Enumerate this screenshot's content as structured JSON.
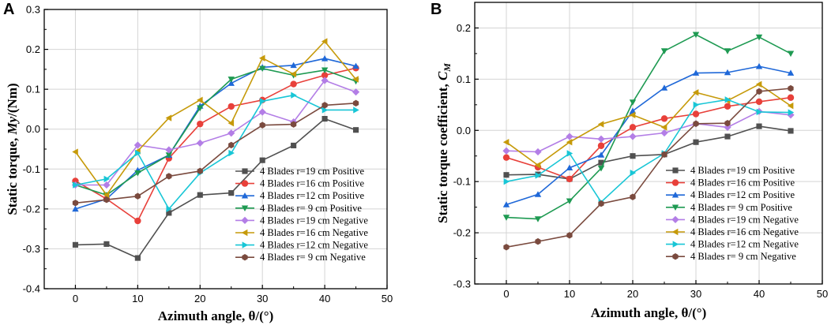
{
  "chart_data": [
    {
      "type": "line",
      "panel_label": "A",
      "xlabel": "Azimuth angle, θ/(°)",
      "ylabel_prefix": "Static torque, ",
      "ylabel_var": "My",
      "ylabel_suffix": "/(Nm)",
      "xlim": [
        -5,
        50
      ],
      "ylim": [
        -0.4,
        0.3
      ],
      "xticks": [
        0,
        10,
        20,
        30,
        40,
        50
      ],
      "yticks": [
        -0.4,
        -0.3,
        -0.2,
        -0.1,
        0.0,
        0.1,
        0.2,
        0.3
      ],
      "ytick_labels": [
        "-0.4",
        "-0.3",
        "-0.2",
        "-0.1",
        "0.0",
        "0.1",
        "0.2",
        "0.3"
      ],
      "grid": true,
      "legend_position": "lower-right",
      "x": [
        0,
        5,
        10,
        15,
        20,
        25,
        30,
        35,
        40,
        45
      ],
      "series": [
        {
          "name": "4 Blades r=19 cm Positive",
          "color": "#505050",
          "marker": "square",
          "values": [
            -0.29,
            -0.288,
            -0.323,
            -0.21,
            -0.165,
            -0.16,
            -0.078,
            -0.041,
            0.026,
            -0.002
          ]
        },
        {
          "name": "4 Blades r=16 cm Positive",
          "color": "#e8403a",
          "marker": "circle",
          "values": [
            -0.13,
            -0.175,
            -0.23,
            -0.073,
            0.013,
            0.057,
            0.073,
            0.113,
            0.135,
            0.153
          ]
        },
        {
          "name": "4 Blades r=12 cm Positive",
          "color": "#1f68d8",
          "marker": "triangle-up",
          "values": [
            -0.2,
            -0.175,
            -0.103,
            -0.065,
            0.058,
            0.115,
            0.155,
            0.16,
            0.177,
            0.158
          ]
        },
        {
          "name": "4 Blades r=  9 cm Positive",
          "color": "#1e9a52",
          "marker": "triangle-down",
          "values": [
            -0.14,
            -0.165,
            -0.11,
            -0.065,
            0.053,
            0.125,
            0.152,
            0.135,
            0.148,
            0.12
          ]
        },
        {
          "name": "4 Blades r=19 cm Negative",
          "color": "#b37ee6",
          "marker": "diamond",
          "values": [
            -0.14,
            -0.14,
            -0.04,
            -0.052,
            -0.035,
            -0.01,
            0.043,
            0.018,
            0.122,
            0.093
          ]
        },
        {
          "name": "4 Blades r=16 cm Negative",
          "color": "#c69a0a",
          "marker": "triangle-left",
          "values": [
            -0.057,
            -0.165,
            -0.055,
            0.028,
            0.073,
            0.015,
            0.178,
            0.138,
            0.22,
            0.125
          ]
        },
        {
          "name": "4 Blades r=12 cm Negative",
          "color": "#18c6d6",
          "marker": "triangle-right",
          "values": [
            -0.14,
            -0.125,
            -0.06,
            -0.2,
            -0.11,
            -0.06,
            0.07,
            0.085,
            0.048,
            0.048
          ]
        },
        {
          "name": "4 Blades r=  9 cm Negative",
          "color": "#7a4a3e",
          "marker": "hexagon",
          "values": [
            -0.185,
            -0.177,
            -0.168,
            -0.118,
            -0.105,
            -0.04,
            0.01,
            0.012,
            0.06,
            0.065
          ]
        }
      ]
    },
    {
      "type": "line",
      "panel_label": "B",
      "xlabel": "Azimuth angle, θ/(°)",
      "ylabel_prefix": "Static torque coefficient, ",
      "ylabel_var": "C",
      "ylabel_sub": "M",
      "ylabel_suffix": "",
      "xlim": [
        -5,
        50
      ],
      "ylim": [
        -0.3,
        0.25
      ],
      "xticks": [
        0,
        10,
        20,
        30,
        40,
        50
      ],
      "yticks": [
        -0.3,
        -0.2,
        -0.1,
        0.0,
        0.1,
        0.2
      ],
      "ytick_labels": [
        "-0.3",
        "-0.2",
        "-0.1",
        "0.0",
        "0.1",
        "0.2"
      ],
      "grid": true,
      "legend_position": "lower-right",
      "x": [
        0,
        5,
        10,
        15,
        20,
        25,
        30,
        35,
        40,
        45
      ],
      "series": [
        {
          "name": "4 Blades r=19 cm Positive",
          "color": "#505050",
          "marker": "square",
          "values": [
            -0.087,
            -0.086,
            -0.095,
            -0.063,
            -0.05,
            -0.047,
            -0.023,
            -0.012,
            0.008,
            -0.001
          ]
        },
        {
          "name": "4 Blades r=16 cm Positive",
          "color": "#e8403a",
          "marker": "circle",
          "values": [
            -0.053,
            -0.072,
            -0.095,
            -0.03,
            0.006,
            0.023,
            0.032,
            0.047,
            0.056,
            0.064
          ]
        },
        {
          "name": "4 Blades r=12 cm Positive",
          "color": "#1f68d8",
          "marker": "triangle-up",
          "values": [
            -0.145,
            -0.125,
            -0.073,
            -0.048,
            0.038,
            0.083,
            0.112,
            0.113,
            0.125,
            0.112
          ]
        },
        {
          "name": "4 Blades r=  9 cm Positive",
          "color": "#1e9a52",
          "marker": "triangle-down",
          "values": [
            -0.17,
            -0.173,
            -0.138,
            -0.074,
            0.055,
            0.155,
            0.187,
            0.155,
            0.182,
            0.15
          ]
        },
        {
          "name": "4 Blades r=19 cm Negative",
          "color": "#b37ee6",
          "marker": "diamond",
          "values": [
            -0.04,
            -0.042,
            -0.012,
            -0.017,
            -0.012,
            -0.005,
            0.013,
            0.006,
            0.037,
            0.03
          ]
        },
        {
          "name": "4 Blades r=16 cm Negative",
          "color": "#c69a0a",
          "marker": "triangle-left",
          "values": [
            -0.023,
            -0.068,
            -0.023,
            0.012,
            0.03,
            0.006,
            0.074,
            0.058,
            0.09,
            0.048
          ]
        },
        {
          "name": "4 Blades r=12 cm Negative",
          "color": "#18c6d6",
          "marker": "triangle-right",
          "values": [
            -0.1,
            -0.088,
            -0.045,
            -0.14,
            -0.083,
            -0.045,
            0.05,
            0.06,
            0.036,
            0.035
          ]
        },
        {
          "name": "4 Blades r=  9 cm Negative",
          "color": "#7a4a3e",
          "marker": "hexagon",
          "values": [
            -0.228,
            -0.217,
            -0.205,
            -0.143,
            -0.13,
            -0.047,
            0.013,
            0.014,
            0.076,
            0.082
          ]
        }
      ]
    }
  ]
}
